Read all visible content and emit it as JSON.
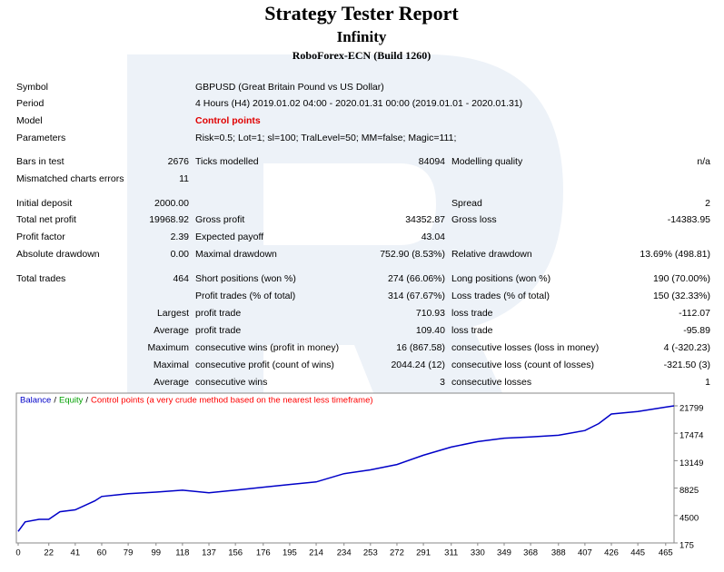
{
  "header": {
    "title": "Strategy Tester Report",
    "subtitle": "Infinity",
    "server": "RoboForex-ECN (Build 1260)"
  },
  "info": [
    {
      "label": "Symbol",
      "value": "GBPUSD (Great Britain Pound vs US Dollar)"
    },
    {
      "label": "Period",
      "value": "4 Hours (H4) 2019.01.02 04:00 - 2020.01.31 00:00 (2019.01.01 - 2020.01.31)"
    },
    {
      "label": "Model",
      "value": "Control points"
    },
    {
      "label": "Parameters",
      "value": "Risk=0.5; Lot=1; sl=100; TralLevel=50; MM=false; Magic=111;"
    }
  ],
  "table": {
    "rows": [
      [
        "Bars in test",
        "2676",
        "Ticks modelled",
        "84094",
        "Modelling quality",
        "n/a"
      ],
      [
        "Mismatched charts errors",
        "11",
        null,
        null,
        null,
        null
      ],
      [
        "Initial deposit",
        "2000.00",
        null,
        null,
        "Spread",
        "2"
      ],
      [
        "Total net profit",
        "19968.92",
        "Gross profit",
        "34352.87",
        "Gross loss",
        "-14383.95"
      ],
      [
        "Profit factor",
        "2.39",
        "Expected payoff",
        "43.04",
        null,
        null
      ],
      [
        "Absolute drawdown",
        "0.00",
        "Maximal drawdown",
        "752.90 (8.53%)",
        "Relative drawdown",
        "13.69% (498.81)"
      ],
      [
        "Total trades",
        "464",
        "Short positions (won %)",
        "274 (66.06%)",
        "Long positions (won %)",
        "190 (70.00%)"
      ],
      [
        null,
        null,
        "Profit trades (% of total)",
        "314 (67.67%)",
        "Loss trades (% of total)",
        "150 (32.33%)"
      ],
      [
        null,
        "Largest",
        "profit trade",
        "710.93",
        "loss trade",
        "-112.07"
      ],
      [
        null,
        "Average",
        "profit trade",
        "109.40",
        "loss trade",
        "-95.89"
      ],
      [
        null,
        "Maximum",
        "consecutive wins (profit in money)",
        "16 (867.58)",
        "consecutive losses (loss in money)",
        "4 (-320.23)"
      ],
      [
        null,
        "Maximal",
        "consecutive profit (count of wins)",
        "2044.24 (12)",
        "consecutive loss (count of losses)",
        "-321.50 (3)"
      ],
      [
        null,
        "Average",
        "consecutive wins",
        "3",
        "consecutive losses",
        "1"
      ]
    ]
  },
  "chart_data": {
    "type": "line",
    "legend": {
      "separator": "/",
      "items": [
        {
          "name": "Balance",
          "color": "#0000c8"
        },
        {
          "name": "Equity",
          "color": "#00a000"
        },
        {
          "name": "Control points (a very crude method based on the nearest less timeframe)",
          "color": "#ff0000"
        }
      ]
    },
    "x": [
      0,
      5,
      15,
      22,
      30,
      41,
      55,
      60,
      79,
      99,
      118,
      137,
      156,
      176,
      195,
      214,
      234,
      253,
      272,
      291,
      311,
      330,
      349,
      368,
      388,
      407,
      417,
      426,
      445,
      465,
      471
    ],
    "series": [
      {
        "name": "Balance",
        "color": "#0000c8",
        "values": [
          2000,
          3500,
          3900,
          3900,
          5100,
          5400,
          6800,
          7500,
          7950,
          8200,
          8500,
          8100,
          8500,
          8960,
          9400,
          9800,
          11100,
          11700,
          12550,
          14000,
          15300,
          16150,
          16700,
          16900,
          17150,
          17900,
          19000,
          20500,
          20900,
          21600,
          21800
        ]
      }
    ],
    "xlim": [
      0,
      471
    ],
    "ylim": [
      175,
      23800
    ],
    "xticks": [
      0,
      22,
      41,
      60,
      79,
      99,
      118,
      137,
      156,
      176,
      195,
      214,
      234,
      253,
      272,
      291,
      311,
      330,
      349,
      368,
      388,
      407,
      426,
      445,
      465
    ],
    "yticks": [
      175,
      4500,
      8825,
      13149,
      17474,
      21799
    ]
  }
}
